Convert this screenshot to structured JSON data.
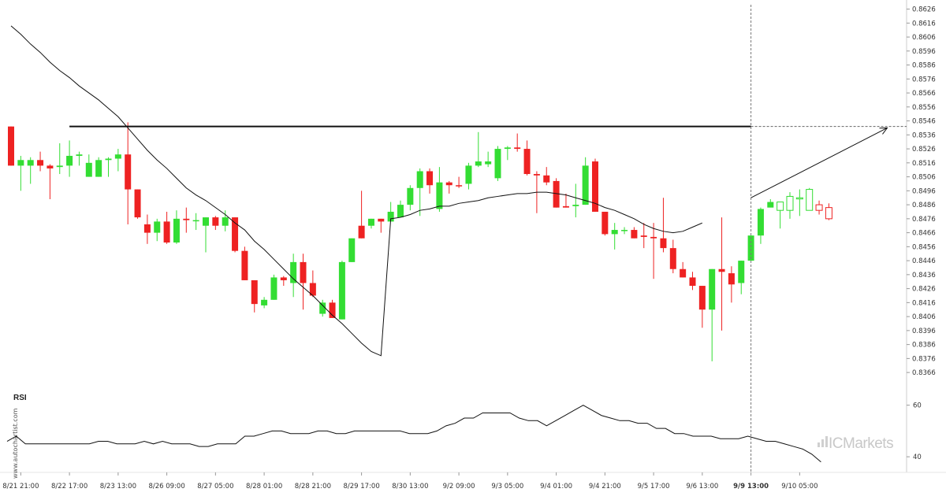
{
  "chart_data": {
    "type": "candlestick",
    "y_axis": {
      "range": [
        0.8361,
        0.8628
      ],
      "ticks": [
        "0.8626",
        "0.8616",
        "0.8606",
        "0.8596",
        "0.8586",
        "0.8576",
        "0.8566",
        "0.8556",
        "0.8546",
        "0.8536",
        "0.8526",
        "0.8516",
        "0.8506",
        "0.8496",
        "0.8486",
        "0.8476",
        "0.8466",
        "0.8456",
        "0.8446",
        "0.8436",
        "0.8426",
        "0.8416",
        "0.8406",
        "0.8396",
        "0.8386",
        "0.8376",
        "0.8366"
      ]
    },
    "x_axis": {
      "labels": [
        {
          "index": 1,
          "text": "8/21 21:00"
        },
        {
          "index": 6,
          "text": "8/22 17:00"
        },
        {
          "index": 11,
          "text": "8/23 13:00"
        },
        {
          "index": 16,
          "text": "8/26 09:00"
        },
        {
          "index": 21,
          "text": "8/27 05:00"
        },
        {
          "index": 26,
          "text": "8/28 01:00"
        },
        {
          "index": 31,
          "text": "8/28 21:00"
        },
        {
          "index": 36,
          "text": "8/29 17:00"
        },
        {
          "index": 41,
          "text": "8/30 13:00"
        },
        {
          "index": 46,
          "text": "9/2 09:00"
        },
        {
          "index": 51,
          "text": "9/3 05:00"
        },
        {
          "index": 56,
          "text": "9/4 01:00"
        },
        {
          "index": 61,
          "text": "9/4 21:00"
        },
        {
          "index": 66,
          "text": "9/5 17:00"
        },
        {
          "index": 71,
          "text": "9/6 13:00"
        },
        {
          "index": 76,
          "text": "9/9 13:00",
          "bold": true
        },
        {
          "index": 81,
          "text": "9/10 05:00"
        }
      ]
    },
    "candles": [
      {
        "o": 0.8542,
        "h": 0.8542,
        "l": 0.8514,
        "c": 0.8514,
        "dir": "down"
      },
      {
        "o": 0.8514,
        "h": 0.8521,
        "l": 0.8496,
        "c": 0.8518,
        "dir": "up"
      },
      {
        "o": 0.8514,
        "h": 0.852,
        "l": 0.8501,
        "c": 0.8518,
        "dir": "up"
      },
      {
        "o": 0.8518,
        "h": 0.8524,
        "l": 0.851,
        "c": 0.8514,
        "dir": "down"
      },
      {
        "o": 0.8514,
        "h": 0.8515,
        "l": 0.849,
        "c": 0.8512,
        "dir": "down"
      },
      {
        "o": 0.8513,
        "h": 0.853,
        "l": 0.8508,
        "c": 0.8514,
        "dir": "up"
      },
      {
        "o": 0.8514,
        "h": 0.8532,
        "l": 0.8506,
        "c": 0.8521,
        "dir": "up"
      },
      {
        "o": 0.8521,
        "h": 0.8524,
        "l": 0.8514,
        "c": 0.8522,
        "dir": "up"
      },
      {
        "o": 0.8516,
        "h": 0.8522,
        "l": 0.8506,
        "c": 0.8506,
        "dir": "up"
      },
      {
        "o": 0.8506,
        "h": 0.852,
        "l": 0.8506,
        "c": 0.8518,
        "dir": "up"
      },
      {
        "o": 0.8518,
        "h": 0.852,
        "l": 0.8506,
        "c": 0.8519,
        "dir": "up"
      },
      {
        "o": 0.8519,
        "h": 0.8526,
        "l": 0.851,
        "c": 0.8522,
        "dir": "up"
      },
      {
        "o": 0.8522,
        "h": 0.8545,
        "l": 0.8472,
        "c": 0.8497,
        "dir": "down"
      },
      {
        "o": 0.8497,
        "h": 0.8497,
        "l": 0.8476,
        "c": 0.8477,
        "dir": "down"
      },
      {
        "o": 0.8472,
        "h": 0.8479,
        "l": 0.8458,
        "c": 0.8466,
        "dir": "down"
      },
      {
        "o": 0.8466,
        "h": 0.8476,
        "l": 0.846,
        "c": 0.8474,
        "dir": "up"
      },
      {
        "o": 0.8474,
        "h": 0.8481,
        "l": 0.8458,
        "c": 0.8459,
        "dir": "down"
      },
      {
        "o": 0.8459,
        "h": 0.8482,
        "l": 0.8458,
        "c": 0.8476,
        "dir": "up"
      },
      {
        "o": 0.8476,
        "h": 0.8484,
        "l": 0.8466,
        "c": 0.8475,
        "dir": "down"
      },
      {
        "o": 0.8475,
        "h": 0.848,
        "l": 0.8468,
        "c": 0.8475,
        "dir": "up"
      },
      {
        "o": 0.8471,
        "h": 0.8477,
        "l": 0.8452,
        "c": 0.8477,
        "dir": "up"
      },
      {
        "o": 0.8477,
        "h": 0.8478,
        "l": 0.8468,
        "c": 0.8471,
        "dir": "down"
      },
      {
        "o": 0.8471,
        "h": 0.8482,
        "l": 0.8467,
        "c": 0.8477,
        "dir": "up"
      },
      {
        "o": 0.8477,
        "h": 0.8477,
        "l": 0.8452,
        "c": 0.8453,
        "dir": "down"
      },
      {
        "o": 0.8453,
        "h": 0.8456,
        "l": 0.8432,
        "c": 0.8432,
        "dir": "down"
      },
      {
        "o": 0.8432,
        "h": 0.8432,
        "l": 0.8409,
        "c": 0.8415,
        "dir": "down"
      },
      {
        "o": 0.8414,
        "h": 0.842,
        "l": 0.8412,
        "c": 0.8418,
        "dir": "up"
      },
      {
        "o": 0.8418,
        "h": 0.8436,
        "l": 0.8418,
        "c": 0.8434,
        "dir": "up"
      },
      {
        "o": 0.8434,
        "h": 0.8435,
        "l": 0.8428,
        "c": 0.8432,
        "dir": "down"
      },
      {
        "o": 0.843,
        "h": 0.8451,
        "l": 0.842,
        "c": 0.8445,
        "dir": "up"
      },
      {
        "o": 0.8445,
        "h": 0.8451,
        "l": 0.8411,
        "c": 0.843,
        "dir": "down"
      },
      {
        "o": 0.843,
        "h": 0.8439,
        "l": 0.842,
        "c": 0.8421,
        "dir": "down"
      },
      {
        "o": 0.8416,
        "h": 0.8418,
        "l": 0.8406,
        "c": 0.8408,
        "dir": "up"
      },
      {
        "o": 0.8405,
        "h": 0.8418,
        "l": 0.8405,
        "c": 0.8416,
        "dir": "down"
      },
      {
        "o": 0.8404,
        "h": 0.8446,
        "l": 0.8404,
        "c": 0.8445,
        "dir": "up"
      },
      {
        "o": 0.8445,
        "h": 0.8462,
        "l": 0.8445,
        "c": 0.8462,
        "dir": "up"
      },
      {
        "o": 0.8462,
        "h": 0.8496,
        "l": 0.8462,
        "c": 0.8471,
        "dir": "down"
      },
      {
        "o": 0.8471,
        "h": 0.8476,
        "l": 0.8469,
        "c": 0.8476,
        "dir": "up"
      },
      {
        "o": 0.8476,
        "h": 0.8476,
        "l": 0.8466,
        "c": 0.8474,
        "dir": "down"
      },
      {
        "o": 0.8474,
        "h": 0.8488,
        "l": 0.8474,
        "c": 0.8481,
        "dir": "up"
      },
      {
        "o": 0.8477,
        "h": 0.8489,
        "l": 0.8477,
        "c": 0.8486,
        "dir": "up"
      },
      {
        "o": 0.8486,
        "h": 0.85,
        "l": 0.8482,
        "c": 0.8498,
        "dir": "up"
      },
      {
        "o": 0.8498,
        "h": 0.8512,
        "l": 0.8478,
        "c": 0.851,
        "dir": "up"
      },
      {
        "o": 0.851,
        "h": 0.8512,
        "l": 0.8494,
        "c": 0.85,
        "dir": "down"
      },
      {
        "o": 0.8483,
        "h": 0.8513,
        "l": 0.8481,
        "c": 0.8502,
        "dir": "up"
      },
      {
        "o": 0.8502,
        "h": 0.8503,
        "l": 0.8494,
        "c": 0.85,
        "dir": "down"
      },
      {
        "o": 0.85,
        "h": 0.8506,
        "l": 0.8498,
        "c": 0.85,
        "dir": "down"
      },
      {
        "o": 0.8501,
        "h": 0.8516,
        "l": 0.8497,
        "c": 0.8514,
        "dir": "up"
      },
      {
        "o": 0.8514,
        "h": 0.8538,
        "l": 0.8513,
        "c": 0.8517,
        "dir": "up"
      },
      {
        "o": 0.8517,
        "h": 0.8524,
        "l": 0.8513,
        "c": 0.8515,
        "dir": "up"
      },
      {
        "o": 0.8505,
        "h": 0.8528,
        "l": 0.8503,
        "c": 0.8526,
        "dir": "up"
      },
      {
        "o": 0.8526,
        "h": 0.8528,
        "l": 0.8518,
        "c": 0.8527,
        "dir": "up"
      },
      {
        "o": 0.8527,
        "h": 0.8537,
        "l": 0.8524,
        "c": 0.8526,
        "dir": "down"
      },
      {
        "o": 0.8526,
        "h": 0.8532,
        "l": 0.8507,
        "c": 0.8508,
        "dir": "down"
      },
      {
        "o": 0.8508,
        "h": 0.851,
        "l": 0.848,
        "c": 0.8507,
        "dir": "down"
      },
      {
        "o": 0.8507,
        "h": 0.8513,
        "l": 0.85,
        "c": 0.8502,
        "dir": "down"
      },
      {
        "o": 0.8503,
        "h": 0.8505,
        "l": 0.8484,
        "c": 0.8484,
        "dir": "down"
      },
      {
        "o": 0.8484,
        "h": 0.8494,
        "l": 0.8484,
        "c": 0.8485,
        "dir": "down"
      },
      {
        "o": 0.8485,
        "h": 0.8501,
        "l": 0.8477,
        "c": 0.8486,
        "dir": "up"
      },
      {
        "o": 0.8486,
        "h": 0.852,
        "l": 0.8486,
        "c": 0.8514,
        "dir": "up"
      },
      {
        "o": 0.8517,
        "h": 0.8519,
        "l": 0.8481,
        "c": 0.8481,
        "dir": "down"
      },
      {
        "o": 0.8481,
        "h": 0.8481,
        "l": 0.8464,
        "c": 0.8465,
        "dir": "down"
      },
      {
        "o": 0.8465,
        "h": 0.8473,
        "l": 0.8454,
        "c": 0.8468,
        "dir": "up"
      },
      {
        "o": 0.8468,
        "h": 0.847,
        "l": 0.8465,
        "c": 0.8468,
        "dir": "up"
      },
      {
        "o": 0.8468,
        "h": 0.847,
        "l": 0.8462,
        "c": 0.8462,
        "dir": "down"
      },
      {
        "o": 0.8464,
        "h": 0.8473,
        "l": 0.8455,
        "c": 0.8463,
        "dir": "down"
      },
      {
        "o": 0.8463,
        "h": 0.8473,
        "l": 0.8433,
        "c": 0.8462,
        "dir": "down"
      },
      {
        "o": 0.8462,
        "h": 0.8491,
        "l": 0.8452,
        "c": 0.8455,
        "dir": "down"
      },
      {
        "o": 0.8455,
        "h": 0.8461,
        "l": 0.8437,
        "c": 0.844,
        "dir": "down"
      },
      {
        "o": 0.844,
        "h": 0.8445,
        "l": 0.8434,
        "c": 0.8434,
        "dir": "down"
      },
      {
        "o": 0.8434,
        "h": 0.8438,
        "l": 0.8425,
        "c": 0.8428,
        "dir": "down"
      },
      {
        "o": 0.8428,
        "h": 0.8428,
        "l": 0.8398,
        "c": 0.8411,
        "dir": "down"
      },
      {
        "o": 0.8411,
        "h": 0.844,
        "l": 0.8374,
        "c": 0.844,
        "dir": "up"
      },
      {
        "o": 0.8438,
        "h": 0.8477,
        "l": 0.8396,
        "c": 0.844,
        "dir": "down"
      },
      {
        "o": 0.8437,
        "h": 0.8442,
        "l": 0.8416,
        "c": 0.8429,
        "dir": "down"
      },
      {
        "o": 0.843,
        "h": 0.8446,
        "l": 0.8422,
        "c": 0.8446,
        "dir": "up"
      },
      {
        "o": 0.8446,
        "h": 0.8464,
        "l": 0.8446,
        "c": 0.8464,
        "dir": "up"
      },
      {
        "o": 0.8464,
        "h": 0.8484,
        "l": 0.8458,
        "c": 0.8483,
        "dir": "up"
      },
      {
        "o": 0.8484,
        "h": 0.849,
        "l": 0.8486,
        "c": 0.8488,
        "dir": "up"
      },
      {
        "o": 0.8488,
        "h": 0.8488,
        "l": 0.8469,
        "c": 0.8482,
        "dir": "up_future"
      },
      {
        "o": 0.8482,
        "h": 0.8495,
        "l": 0.8476,
        "c": 0.8492,
        "dir": "up_future"
      },
      {
        "o": 0.8491,
        "h": 0.8497,
        "l": 0.8478,
        "c": 0.8491,
        "dir": "up_future"
      },
      {
        "o": 0.8482,
        "h": 0.8498,
        "l": 0.8482,
        "c": 0.8497,
        "dir": "up_future"
      },
      {
        "o": 0.8486,
        "h": 0.8489,
        "l": 0.8479,
        "c": 0.8482,
        "dir": "down_future"
      },
      {
        "o": 0.8484,
        "h": 0.8487,
        "l": 0.8475,
        "c": 0.8476,
        "dir": "down_future"
      }
    ],
    "moving_average": [
      0.8614,
      0.8608,
      0.8601,
      0.8595,
      0.8588,
      0.8582,
      0.8577,
      0.8571,
      0.8566,
      0.8561,
      0.8555,
      0.8549,
      0.8541,
      0.8533,
      0.8525,
      0.8518,
      0.8512,
      0.8505,
      0.8498,
      0.8493,
      0.8489,
      0.8484,
      0.8479,
      0.8473,
      0.8468,
      0.846,
      0.8454,
      0.8447,
      0.844,
      0.8433,
      0.8427,
      0.8421,
      0.8414,
      0.8407,
      0.8401,
      0.8394,
      0.8387,
      0.8381,
      0.8378,
      0.8476,
      0.8477,
      0.8479,
      0.8482,
      0.8483,
      0.8485,
      0.8485,
      0.8487,
      0.8488,
      0.8489,
      0.8491,
      0.8492,
      0.8493,
      0.8494,
      0.8494,
      0.8495,
      0.8495,
      0.8494,
      0.8493,
      0.8491,
      0.8489,
      0.8487,
      0.8484,
      0.8482,
      0.8479,
      0.8476,
      0.8472,
      0.8469,
      0.8467,
      0.8466,
      0.8467,
      0.847,
      0.8473
    ],
    "resistance_level": 0.8542,
    "resistance_start_index": 6,
    "projection": {
      "from_index": 76,
      "from_value": 0.8491,
      "to_index": 90,
      "to_value": 0.8541
    },
    "current_time_index": 76,
    "rsi": {
      "label": "RSI",
      "ticks": [
        "60",
        "40"
      ],
      "range": [
        37,
        66
      ],
      "values": [
        46,
        48,
        45,
        45,
        45,
        45,
        45,
        45,
        45,
        45,
        46,
        46,
        45,
        45,
        45,
        46,
        45,
        46,
        45,
        45,
        45,
        44,
        44,
        45,
        45,
        45,
        48,
        48,
        49,
        50,
        50,
        49,
        49,
        49,
        50,
        50,
        49,
        49,
        50,
        50,
        50,
        50,
        50,
        50,
        49,
        49,
        49,
        50,
        52,
        53,
        55,
        55,
        57,
        57,
        57,
        57,
        55,
        54,
        54,
        52,
        54,
        56,
        58,
        60,
        58,
        56,
        55,
        54,
        54,
        53,
        53,
        51,
        51,
        49,
        49,
        48,
        48,
        48,
        47,
        47,
        47,
        48,
        47,
        46,
        46,
        45,
        44,
        43,
        41,
        38
      ]
    }
  },
  "branding": {
    "site": "www.autochartist.com",
    "brand": "ICMarkets"
  },
  "colors": {
    "bull": "#33dd33",
    "bear": "#ee2222",
    "line": "#111111",
    "grid": "#dddddd",
    "axis": "#cccccc"
  }
}
